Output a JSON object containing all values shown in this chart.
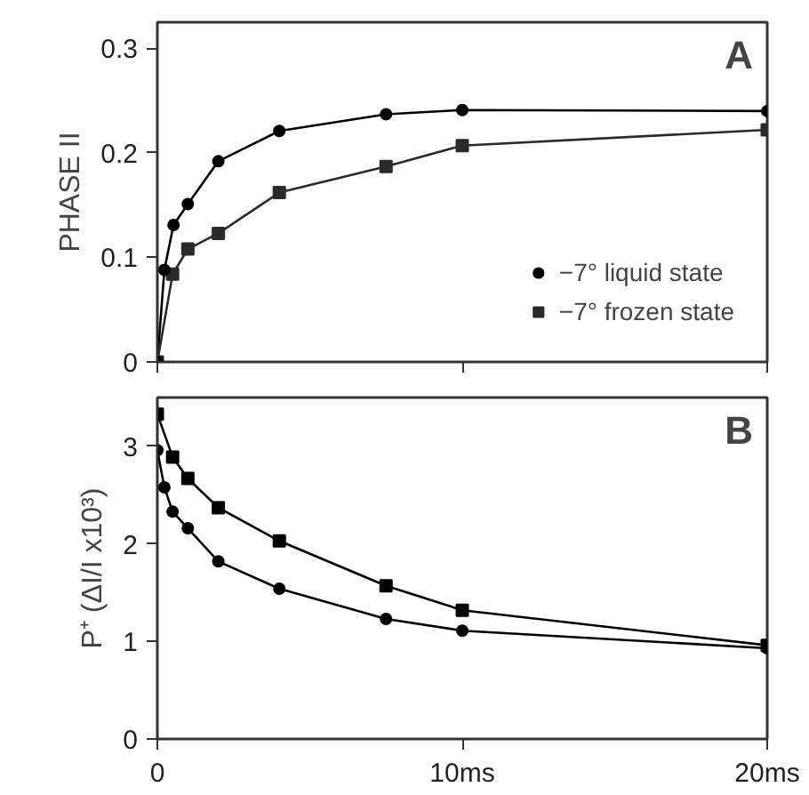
{
  "chart_data": [
    {
      "type": "line",
      "ylabel": "PHASE II",
      "annotations": [
        "A"
      ],
      "xlim": [
        0,
        20
      ],
      "xticks": [
        {
          "value": 0,
          "label": null
        },
        {
          "value": 10,
          "label": null
        },
        {
          "value": 20,
          "label": null
        }
      ],
      "ylim": [
        0,
        0.325
      ],
      "yticks": [
        0,
        0.1,
        0.2,
        0.3
      ],
      "tick_labels": "y",
      "grid": false,
      "legend": "bottom right",
      "series": [
        {
          "name": "−7° liquid state",
          "color": "#000000",
          "marker": "circle",
          "x": [
            0,
            0.23,
            0.53,
            1.0,
            2.0,
            4.0,
            7.5,
            10,
            20
          ],
          "values": [
            0,
            0.088,
            0.131,
            0.151,
            0.192,
            0.221,
            0.237,
            0.241,
            0.24
          ]
        },
        {
          "name": "−7° frozen state",
          "color": "#2a2a2a",
          "marker": "square",
          "x": [
            0,
            0.5,
            1.0,
            2.0,
            4.0,
            7.5,
            10,
            20
          ],
          "values": [
            0,
            0.084,
            0.108,
            0.123,
            0.162,
            0.187,
            0.207,
            0.222
          ]
        }
      ]
    },
    {
      "type": "line",
      "ylabel": "P⁺ (ΔI/I x10³)",
      "annotations": [
        "B"
      ],
      "xlim": [
        0,
        20
      ],
      "xticks": [
        0,
        {
          "value": 10,
          "label": "10ms"
        },
        {
          "value": 20,
          "label": "20ms"
        }
      ],
      "ylim": [
        0,
        3.5
      ],
      "yticks": [
        0,
        1,
        2,
        3
      ],
      "grid": false,
      "legend": false,
      "series": [
        {
          "color": "#000000",
          "marker": "circle",
          "x": [
            0,
            0.23,
            0.5,
            1.0,
            2.0,
            4.0,
            7.5,
            10,
            20
          ],
          "values": [
            2.96,
            2.58,
            2.33,
            2.16,
            1.82,
            1.54,
            1.23,
            1.11,
            0.93
          ]
        },
        {
          "color": "#000000",
          "marker": "square",
          "x": [
            0,
            0.5,
            1.0,
            2.0,
            4.0,
            7.5,
            10,
            20
          ],
          "values": [
            3.33,
            2.89,
            2.67,
            2.37,
            2.03,
            1.57,
            1.32,
            0.96
          ]
        }
      ]
    }
  ]
}
